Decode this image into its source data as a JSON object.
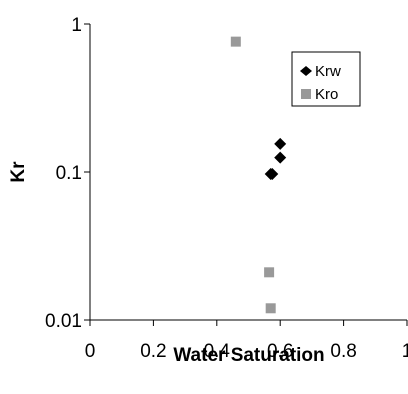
{
  "chart_data": {
    "type": "scatter",
    "xlabel": "Water Saturation",
    "ylabel": "Kr",
    "xlim": [
      0,
      1
    ],
    "ylim": [
      0.01,
      1
    ],
    "yscale": "log",
    "grid": false,
    "legend_position": "top-right",
    "x_ticks": [
      "0",
      "0.2",
      "0.4",
      "0.6",
      "0.8",
      "1"
    ],
    "x_tick_values": [
      0,
      0.2,
      0.4,
      0.6,
      0.8,
      1
    ],
    "y_ticks": [
      "0.01",
      "0.1",
      "1"
    ],
    "y_tick_values": [
      0.01,
      0.1,
      1
    ],
    "series": [
      {
        "name": "Krw",
        "marker": "diamond",
        "color": "#000000",
        "points": [
          {
            "x": 0.57,
            "y": 0.097
          },
          {
            "x": 0.575,
            "y": 0.097
          },
          {
            "x": 0.6,
            "y": 0.125
          },
          {
            "x": 0.6,
            "y": 0.155
          }
        ]
      },
      {
        "name": "Kro",
        "marker": "square",
        "color": "#999999",
        "points": [
          {
            "x": 0.46,
            "y": 0.76
          },
          {
            "x": 0.565,
            "y": 0.021
          },
          {
            "x": 0.57,
            "y": 0.012
          }
        ]
      }
    ]
  }
}
